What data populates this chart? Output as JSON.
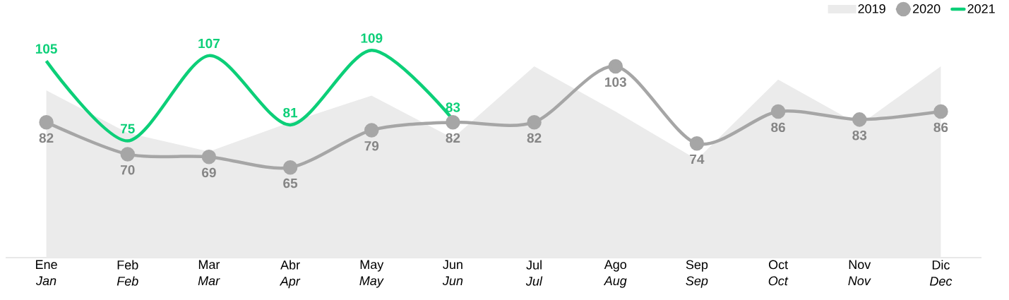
{
  "chart_data": {
    "type": "line",
    "categories": [
      "Ene *Jan*",
      "Feb *Feb*",
      "Mar *Mar*",
      "Abr *Apr*",
      "May *May*",
      "Jun *Jun*",
      "Jul *Jul*",
      "Ago *Aug*",
      "Sep *Sep*",
      "Oct *Oct*",
      "Nov *Nov*",
      "Dic *Dec*"
    ],
    "series": [
      {
        "name": "2019",
        "type": "area",
        "color": "#ebebeb",
        "values": [
          94,
          78,
          71,
          82,
          92,
          76,
          103,
          86,
          68,
          98,
          81,
          103
        ]
      },
      {
        "name": "2020",
        "color": "#a6a6a6",
        "marker": "circle",
        "data_labels": true,
        "values": [
          82,
          70,
          69,
          65,
          79,
          82,
          82,
          103,
          74,
          86,
          83,
          86
        ]
      },
      {
        "name": "2021",
        "color": "#0ccf78",
        "marker": "none",
        "data_labels": true,
        "values": [
          105,
          75,
          107,
          81,
          109,
          83,
          null,
          null,
          null,
          null,
          null,
          null
        ]
      }
    ],
    "legend": "top right",
    "grid": false
  }
}
